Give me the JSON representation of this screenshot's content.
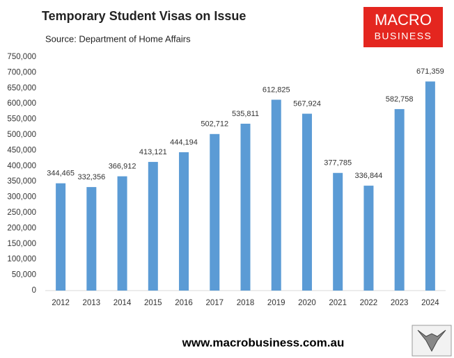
{
  "chart_data": {
    "type": "bar",
    "title": "Temporary Student Visas on Issue",
    "subtitle": "Source: Department of Home Affairs",
    "categories": [
      "2012",
      "2013",
      "2014",
      "2015",
      "2016",
      "2017",
      "2018",
      "2019",
      "2020",
      "2021",
      "2022",
      "2023",
      "2024"
    ],
    "values": [
      344465,
      332356,
      366912,
      413121,
      444194,
      502712,
      535811,
      612825,
      567924,
      377785,
      336844,
      582758,
      671359
    ],
    "value_labels": [
      "344,465",
      "332,356",
      "366,912",
      "413,121",
      "444,194",
      "502,712",
      "535,811",
      "612,825",
      "567,924",
      "377,785",
      "336,844",
      "582,758",
      "671,359"
    ],
    "color": "#5b9bd5",
    "grid": false,
    "ylim": [
      0,
      750000
    ],
    "yticks": [
      0,
      {
        "value": 50000,
        "label": "50,000"
      },
      {
        "value": 100000,
        "label": "100,000"
      },
      {
        "value": 150000,
        "label": "150,000"
      },
      {
        "value": 200000,
        "label": "200,000"
      },
      {
        "value": 250000,
        "label": "250,000"
      },
      {
        "value": 300000,
        "label": "300,000"
      },
      {
        "value": 350000,
        "label": "350,000"
      },
      {
        "value": 400000,
        "label": "400,000"
      },
      {
        "value": 450000,
        "label": "450,000"
      },
      {
        "value": 500000,
        "label": "500,000"
      },
      {
        "value": 550000,
        "label": "550,000"
      },
      {
        "value": 600000,
        "label": "600,000"
      },
      {
        "value": 650000,
        "label": "650,000"
      },
      {
        "value": 700000,
        "label": "700,000"
      },
      {
        "value": 750000,
        "label": "750,000"
      }
    ]
  },
  "logo_text": [
    "MACRO",
    "BUSINESS"
  ],
  "website": "www.macrobusiness.com.au"
}
